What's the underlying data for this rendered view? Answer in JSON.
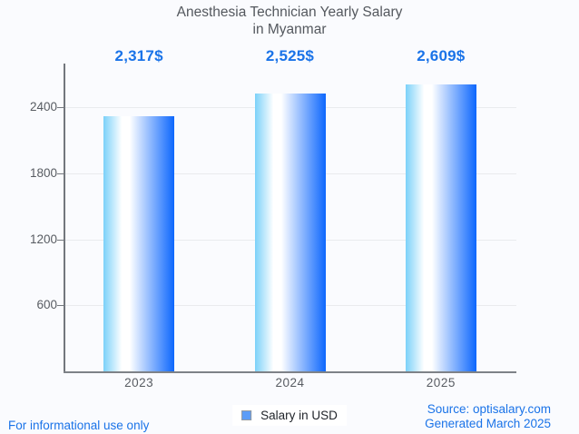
{
  "title": {
    "line1": "Anesthesia Technician Yearly Salary",
    "line2": "in Myanmar"
  },
  "chart_data": {
    "type": "bar",
    "title": "Anesthesia Technician Yearly Salary in Myanmar",
    "categories": [
      "2023",
      "2024",
      "2025"
    ],
    "values": [
      2317,
      2525,
      2609
    ],
    "value_labels": [
      "2,317$",
      "2,525$",
      "2,609$"
    ],
    "series_name": "Salary in USD",
    "xlabel": "",
    "ylabel": "",
    "ylim": [
      0,
      2800
    ],
    "yticks": [
      600,
      1200,
      1800,
      2400
    ],
    "ytick_labels": [
      "600",
      "1200",
      "1800",
      "2400"
    ],
    "grid": true,
    "legend_position": "bottom-center",
    "bar_gradient": [
      "#7bd1f9",
      "#ffffff",
      "#0d67fd"
    ]
  },
  "legend": {
    "label": "Salary in USD",
    "swatch_color": "#5b9cf7",
    "swatch_border": "#949aa0"
  },
  "footer": {
    "disclaimer": "For informational use only",
    "source_line1": "Source: optisalary.com",
    "source_line2": "Generated March 2025"
  },
  "colors": {
    "accent_blue": "#1a73e8",
    "title_gray": "#54585e",
    "axis_label_gray": "#585c62",
    "axis_line_gray": "#73777d",
    "gridline_gray": "#e9ebee",
    "background": "#fafbfe"
  }
}
